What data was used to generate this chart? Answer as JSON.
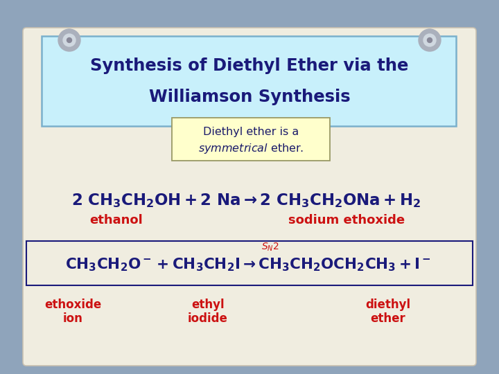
{
  "bg_color": "#8fa4bb",
  "slide_bg": "#f0ede0",
  "title_box_bg": "#c8f0fb",
  "title_box_edge": "#7ab0cc",
  "title_text_line1": "Synthesis of Diethyl Ether via the",
  "title_text_line2": "Williamson Synthesis",
  "title_color": "#1a1a7a",
  "subtitle_box_bg": "#ffffcc",
  "subtitle_box_edge": "#999966",
  "subtitle_line1": "Diethyl ether is a",
  "subtitle_line2_italic": "symmetrical",
  "subtitle_line2_rest": " ether.",
  "subtitle_color": "#1a1a6a",
  "eq1_color": "#1a1a7a",
  "eq1_label_color": "#cc1111",
  "eq2_color": "#1a1a7a",
  "eq2_label_color": "#cc1111",
  "eq2_box_edge": "#1a1a7a",
  "sn2_color": "#cc1111",
  "pin_outer": "#aab0bc",
  "pin_inner": "#d0d8e0",
  "pin_center": "#888898"
}
